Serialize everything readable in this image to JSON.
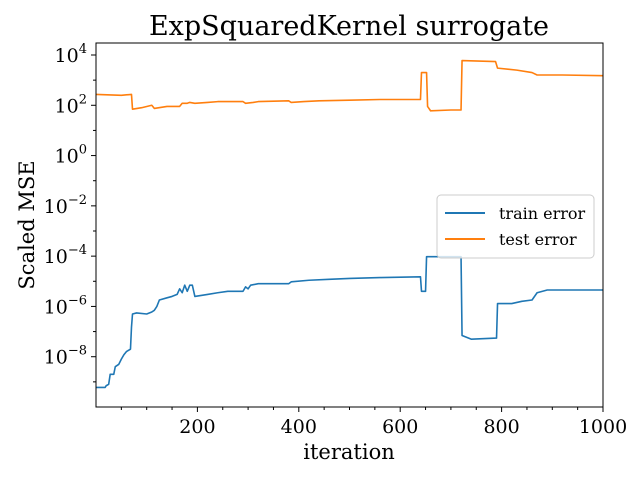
{
  "chart_data": {
    "type": "line",
    "title": "ExpSquaredKernel surrogate",
    "xlabel": "iteration",
    "ylabel": "Scaled MSE",
    "xlim": [
      0,
      1000
    ],
    "ylim": [
      1e-10,
      30000
    ],
    "yscale": "log",
    "grid": false,
    "legend": "center-right",
    "x_ticks": [
      200,
      400,
      600,
      800,
      1000
    ],
    "x_tick_labels": [
      "200",
      "400",
      "600",
      "800",
      "1000"
    ],
    "y_ticks": [
      1e-08,
      1e-06,
      0.0001,
      0.01,
      1,
      100,
      10000
    ],
    "y_tick_labels": [
      {
        "base": "10",
        "exp": "−8"
      },
      {
        "base": "10",
        "exp": "−6"
      },
      {
        "base": "10",
        "exp": "−4"
      },
      {
        "base": "10",
        "exp": "−2"
      },
      {
        "base": "10",
        "exp": "0"
      },
      {
        "base": "10",
        "exp": "2"
      },
      {
        "base": "10",
        "exp": "4"
      }
    ],
    "series": [
      {
        "name": "train error",
        "color": "#1f77b4",
        "points": [
          [
            1,
            6e-10
          ],
          [
            18,
            6e-10
          ],
          [
            20,
            7e-10
          ],
          [
            25,
            8e-10
          ],
          [
            28,
            2e-09
          ],
          [
            35,
            2e-09
          ],
          [
            38,
            4e-09
          ],
          [
            45,
            5e-09
          ],
          [
            50,
            8e-09
          ],
          [
            55,
            1.2e-08
          ],
          [
            60,
            1.6e-08
          ],
          [
            68,
            2e-08
          ],
          [
            70,
            1.5e-07
          ],
          [
            72,
            5e-07
          ],
          [
            80,
            5.5e-07
          ],
          [
            100,
            5e-07
          ],
          [
            110,
            6e-07
          ],
          [
            115,
            7e-07
          ],
          [
            120,
            1e-06
          ],
          [
            125,
            1.8e-06
          ],
          [
            140,
            2.2e-06
          ],
          [
            150,
            2.5e-06
          ],
          [
            160,
            3e-06
          ],
          [
            165,
            5e-06
          ],
          [
            170,
            3.5e-06
          ],
          [
            175,
            7e-06
          ],
          [
            180,
            4e-06
          ],
          [
            185,
            7e-06
          ],
          [
            190,
            7e-06
          ],
          [
            195,
            2.5e-06
          ],
          [
            220,
            3e-06
          ],
          [
            240,
            3.5e-06
          ],
          [
            260,
            4e-06
          ],
          [
            280,
            4e-06
          ],
          [
            290,
            4e-06
          ],
          [
            295,
            6e-06
          ],
          [
            300,
            5e-06
          ],
          [
            305,
            7e-06
          ],
          [
            320,
            8e-06
          ],
          [
            340,
            8e-06
          ],
          [
            380,
            8e-06
          ],
          [
            385,
            9.5e-06
          ],
          [
            420,
            1.1e-05
          ],
          [
            460,
            1.2e-05
          ],
          [
            500,
            1.3e-05
          ],
          [
            560,
            1.4e-05
          ],
          [
            640,
            1.5e-05
          ],
          [
            642,
            4e-06
          ],
          [
            650,
            4e-06
          ],
          [
            652,
            9.5e-05
          ],
          [
            720,
            9.5e-05
          ],
          [
            722,
            7e-08
          ],
          [
            740,
            5e-08
          ],
          [
            790,
            5.5e-08
          ],
          [
            792,
            1.3e-06
          ],
          [
            820,
            1.3e-06
          ],
          [
            840,
            1.6e-06
          ],
          [
            860,
            1.8e-06
          ],
          [
            870,
            3.5e-06
          ],
          [
            890,
            4.5e-06
          ],
          [
            920,
            4.5e-06
          ],
          [
            1000,
            4.5e-06
          ]
        ]
      },
      {
        "name": "test error",
        "color": "#ff7f0e",
        "points": [
          [
            1,
            270
          ],
          [
            50,
            250
          ],
          [
            60,
            260
          ],
          [
            70,
            270
          ],
          [
            72,
            70
          ],
          [
            90,
            80
          ],
          [
            110,
            100
          ],
          [
            115,
            75
          ],
          [
            140,
            90
          ],
          [
            165,
            90
          ],
          [
            170,
            120
          ],
          [
            180,
            120
          ],
          [
            185,
            130
          ],
          [
            195,
            120
          ],
          [
            220,
            130
          ],
          [
            240,
            140
          ],
          [
            290,
            140
          ],
          [
            295,
            120
          ],
          [
            310,
            130
          ],
          [
            320,
            140
          ],
          [
            380,
            150
          ],
          [
            385,
            130
          ],
          [
            410,
            140
          ],
          [
            440,
            150
          ],
          [
            500,
            160
          ],
          [
            560,
            170
          ],
          [
            640,
            170
          ],
          [
            642,
            2000
          ],
          [
            652,
            2000
          ],
          [
            654,
            90
          ],
          [
            660,
            60
          ],
          [
            700,
            65
          ],
          [
            720,
            65
          ],
          [
            722,
            6000
          ],
          [
            788,
            5500
          ],
          [
            792,
            3000
          ],
          [
            830,
            2500
          ],
          [
            860,
            2000
          ],
          [
            870,
            1600
          ],
          [
            920,
            1600
          ],
          [
            1000,
            1500
          ]
        ]
      }
    ]
  }
}
